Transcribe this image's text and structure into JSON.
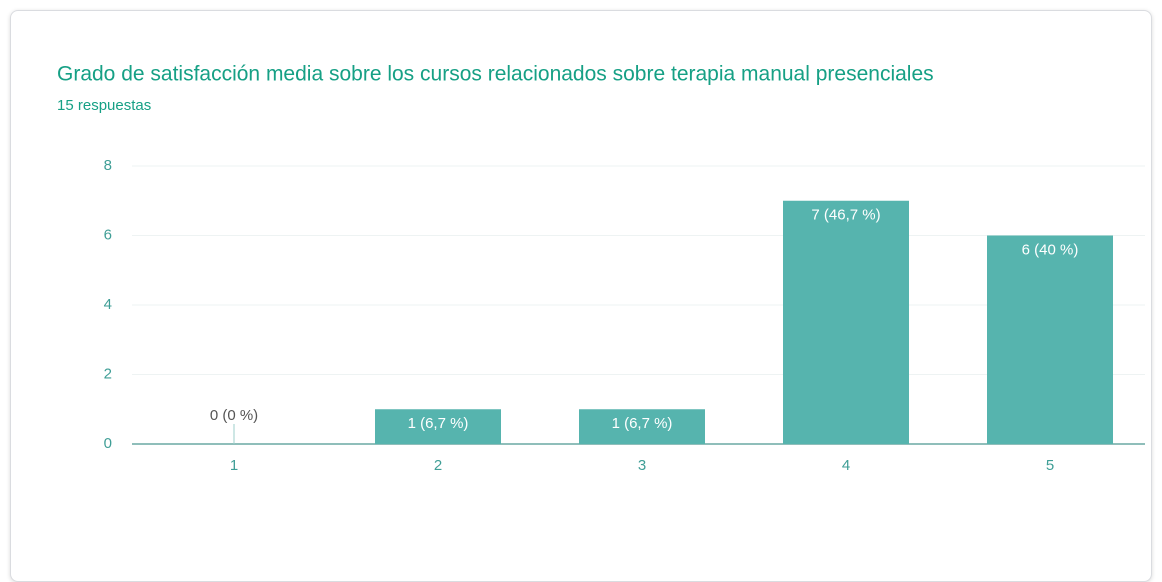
{
  "chart_data": {
    "type": "bar",
    "title": "Grado de satisfacción media sobre los cursos relacionados sobre terapia manual presenciales",
    "subtitle": "15 respuestas",
    "categories": [
      "1",
      "2",
      "3",
      "4",
      "5"
    ],
    "values": [
      0,
      1,
      1,
      7,
      6
    ],
    "value_labels": [
      "0 (0 %)",
      "1 (6,7 %)",
      "1 (6,7 %)",
      "7 (46,7 %)",
      "6 (40 %)"
    ],
    "color": "#56b4ae",
    "ylim": [
      0,
      8
    ],
    "yticks": [
      0,
      2,
      4,
      6,
      8
    ],
    "grid": true
  }
}
